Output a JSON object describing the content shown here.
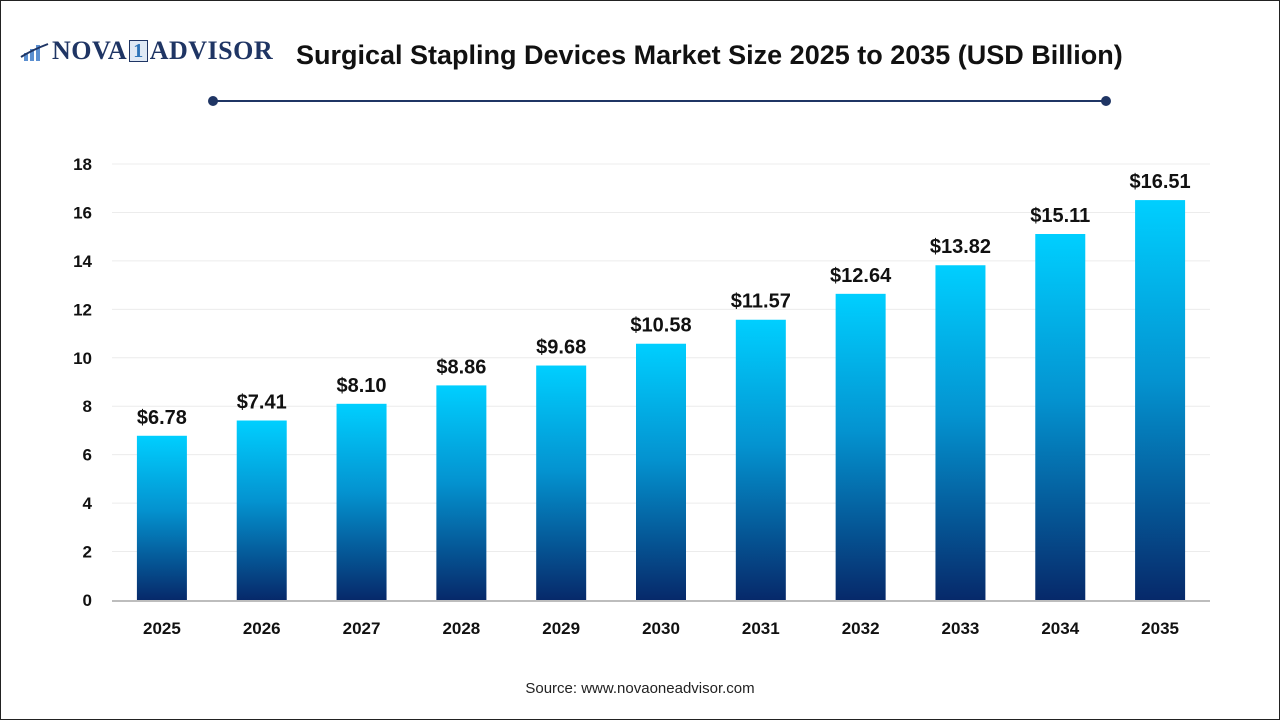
{
  "logo": {
    "text_left": "NOVA",
    "text_mid": "1",
    "text_right": "ADVISOR"
  },
  "source": "Source: www.novaoneadvisor.com",
  "colors": {
    "bar_top": "#00cfff",
    "bar_bottom": "#06296a",
    "title_rule": "#1f3564"
  },
  "chart_data": {
    "type": "bar",
    "title": "Surgical Stapling Devices Market Size 2025 to 2035 (USD Billion)",
    "categories": [
      "2025",
      "2026",
      "2027",
      "2028",
      "2029",
      "2030",
      "2031",
      "2032",
      "2033",
      "2034",
      "2035"
    ],
    "values": [
      6.78,
      7.41,
      8.1,
      8.86,
      9.68,
      10.58,
      11.57,
      12.64,
      13.82,
      15.11,
      16.51
    ],
    "data_labels": [
      "$6.78",
      "$7.41",
      "$8.10",
      "$8.86",
      "$9.68",
      "$10.58",
      "$11.57",
      "$12.64",
      "$13.82",
      "$15.11",
      "$16.51"
    ],
    "yticks": [
      0,
      2,
      4,
      6,
      8,
      10,
      12,
      14,
      16,
      18
    ],
    "ylim": [
      0,
      18
    ],
    "xlabel": "",
    "ylabel": "",
    "grid": true
  }
}
